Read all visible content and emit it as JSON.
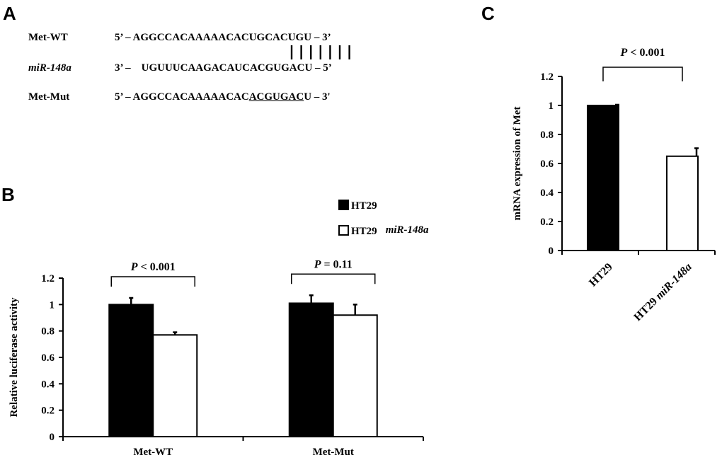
{
  "panelA": {
    "letter": "A",
    "rows": [
      {
        "name": "Met-WT",
        "prefix": "5’ – AGGCCACAAAAACAC",
        "site": "UGCACUGU",
        "suffix": " – 3’",
        "italic": false,
        "underline": false
      },
      {
        "name": "miR-148a",
        "prefix": "3’ –    UGUUUCAAGACAUCA",
        "site": "CGUGACU",
        "suffix": " – 5’",
        "italic": true,
        "underline": false
      },
      {
        "name": "Met-Mut",
        "prefix": "5’ – AGGCCACAAAAACAC",
        "site": "ACGUGAC",
        "suffix": "U – 3'",
        "italic": false,
        "underline": true
      }
    ]
  },
  "panelB": {
    "letter": "B"
  },
  "panelC": {
    "letter": "C"
  },
  "chart_data": [
    {
      "type": "bar",
      "ylabel": "Relative luciferase activity",
      "ylim": [
        0,
        1.2
      ],
      "yticks": [
        "0",
        "0.2",
        "0.4",
        "0.6",
        "0.8",
        "1",
        "1.2"
      ],
      "categories": [
        "Met-WT",
        "Met-Mut"
      ],
      "series": [
        {
          "name": "HT29",
          "values": [
            1.0,
            1.01
          ],
          "errors": [
            0.05,
            0.06
          ],
          "color": "#000000"
        },
        {
          "name": "HT29",
          "name_suffix": "miR-148a",
          "values": [
            0.77,
            0.92
          ],
          "errors": [
            0.02,
            0.08
          ],
          "color": "#ffffff"
        }
      ],
      "legend": "top-right",
      "annotations": [
        {
          "category": "Met-WT",
          "prefix": "P",
          "text": " < 0.001"
        },
        {
          "category": "Met-Mut",
          "prefix": "P",
          "text": " = 0.11"
        }
      ]
    },
    {
      "type": "bar",
      "ylabel": "mRNA expression of Met",
      "ylim": [
        0,
        1.2
      ],
      "yticks": [
        "0",
        "0.2",
        "0.4",
        "0.6",
        "0.8",
        "1",
        "1.2"
      ],
      "categories": [
        "HT29",
        "HT29 miR-148a"
      ],
      "category_parts": [
        {
          "main": "HT29",
          "italic": ""
        },
        {
          "main": "HT29 ",
          "italic": "miR-148a"
        }
      ],
      "values": [
        1.0,
        0.65
      ],
      "errors": [
        0.005,
        0.055
      ],
      "colors": [
        "#000000",
        "#ffffff"
      ],
      "annotation": {
        "prefix": "P",
        "text": " < 0.001"
      }
    }
  ]
}
